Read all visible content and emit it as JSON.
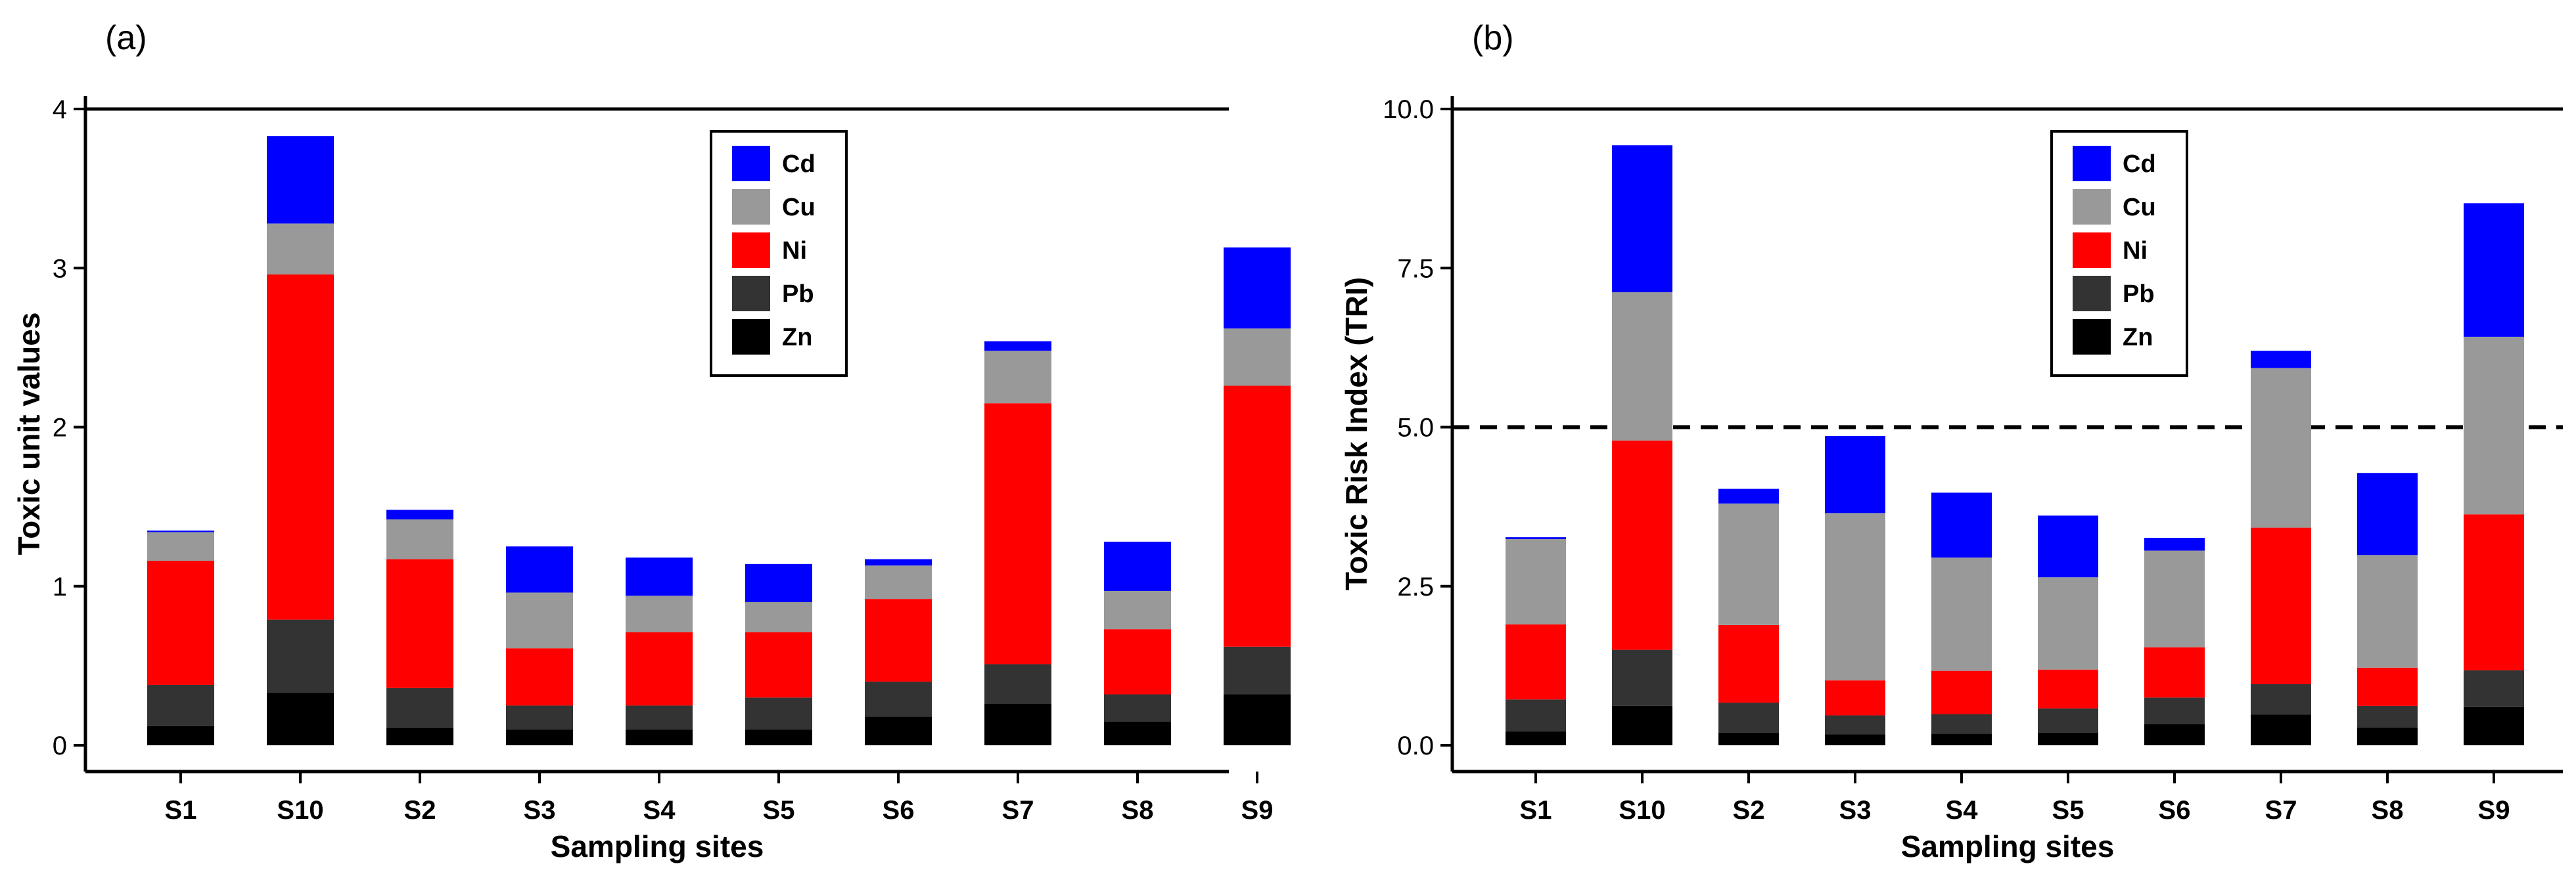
{
  "colors": {
    "Cd": "#0000FF",
    "Cu": "#999999",
    "Ni": "#FF0000",
    "Pb": "#333333",
    "Zn": "#000000"
  },
  "chart_data": [
    {
      "type": "bar",
      "stacked": true,
      "panel": "(a)",
      "xlabel": "Sampling sites",
      "ylabel": "Toxic unit values",
      "ylim": [
        0,
        4
      ],
      "yticks": [
        0,
        1,
        2,
        3,
        4
      ],
      "ytick_labels": [
        "0",
        "1",
        "2",
        "3",
        "4"
      ],
      "reference_line": {
        "y": 4,
        "style": "solid"
      },
      "categories": [
        "S1",
        "S10",
        "S2",
        "S3",
        "S4",
        "S5",
        "S6",
        "S7",
        "S8",
        "S9"
      ],
      "legend": [
        "Cd",
        "Cu",
        "Ni",
        "Pb",
        "Zn"
      ],
      "legend_position": "top-center",
      "series": [
        {
          "name": "Zn",
          "values": [
            0.12,
            0.33,
            0.11,
            0.1,
            0.1,
            0.1,
            0.18,
            0.26,
            0.15,
            0.32
          ]
        },
        {
          "name": "Pb",
          "values": [
            0.26,
            0.46,
            0.25,
            0.15,
            0.15,
            0.2,
            0.22,
            0.25,
            0.17,
            0.3
          ]
        },
        {
          "name": "Ni",
          "values": [
            0.78,
            2.17,
            0.81,
            0.36,
            0.46,
            0.41,
            0.52,
            1.64,
            0.41,
            1.64
          ]
        },
        {
          "name": "Cu",
          "values": [
            0.18,
            0.32,
            0.25,
            0.35,
            0.23,
            0.19,
            0.21,
            0.33,
            0.24,
            0.36
          ]
        },
        {
          "name": "Cd",
          "values": [
            0.01,
            0.55,
            0.06,
            0.29,
            0.24,
            0.24,
            0.04,
            0.06,
            0.31,
            0.51
          ]
        }
      ]
    },
    {
      "type": "bar",
      "stacked": true,
      "panel": "(b)",
      "xlabel": "Sampling sites",
      "ylabel": "Toxic Risk Index (TRI)",
      "ylim": [
        0,
        10
      ],
      "yticks": [
        0,
        2.5,
        5,
        7.5,
        10
      ],
      "ytick_labels": [
        "0.0",
        "2.5",
        "5.0",
        "7.5",
        "10.0"
      ],
      "reference_line": {
        "y": 10,
        "style": "solid"
      },
      "threshold_line": {
        "y": 5,
        "style": "dashed"
      },
      "categories": [
        "S1",
        "S10",
        "S2",
        "S3",
        "S4",
        "S5",
        "S6",
        "S7",
        "S8",
        "S9"
      ],
      "legend": [
        "Cd",
        "Cu",
        "Ni",
        "Pb",
        "Zn"
      ],
      "legend_position": "top-center",
      "series": [
        {
          "name": "Zn",
          "values": [
            0.22,
            0.62,
            0.2,
            0.17,
            0.18,
            0.2,
            0.33,
            0.48,
            0.28,
            0.6
          ]
        },
        {
          "name": "Pb",
          "values": [
            0.5,
            0.88,
            0.47,
            0.3,
            0.31,
            0.38,
            0.42,
            0.48,
            0.34,
            0.58
          ]
        },
        {
          "name": "Ni",
          "values": [
            1.18,
            3.29,
            1.22,
            0.55,
            0.68,
            0.61,
            0.79,
            2.46,
            0.6,
            2.45
          ]
        },
        {
          "name": "Cu",
          "values": [
            1.34,
            2.33,
            1.91,
            2.63,
            1.78,
            1.45,
            1.52,
            2.51,
            1.77,
            2.79
          ]
        },
        {
          "name": "Cd",
          "values": [
            0.03,
            2.31,
            0.23,
            1.21,
            1.02,
            0.97,
            0.2,
            0.27,
            1.29,
            2.1
          ]
        }
      ]
    }
  ]
}
